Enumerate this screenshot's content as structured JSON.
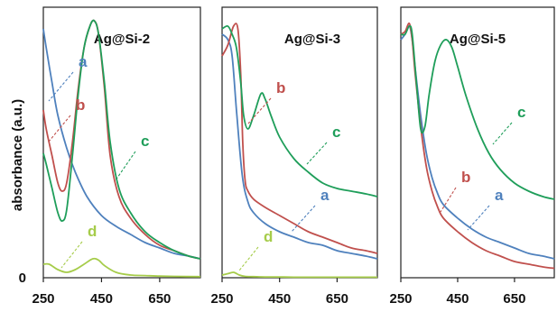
{
  "chart_data": {
    "type": "line",
    "ylabel": "absorbance (a.u.)",
    "y_tick_labels": [
      "0"
    ],
    "grid": false,
    "legend": "none",
    "curve_colors": {
      "a": "#4f81bd",
      "b": "#c0504d",
      "c": "#1f9e5a",
      "d": "#a6cc4a"
    },
    "panels": [
      {
        "title": "Ag@Si-2",
        "xlim": [
          250,
          790
        ],
        "x_ticks": [
          250,
          450,
          650
        ],
        "ylim": [
          0,
          1.0
        ],
        "labels": {
          "a": "a",
          "b": "b",
          "c": "c",
          "d": "d"
        },
        "series": [
          {
            "name": "a",
            "x": [
              250,
              260,
              280,
              300,
              330,
              360,
              400,
              450,
              500,
              550,
              600,
              650,
              700,
              750,
              790
            ],
            "y": [
              0.92,
              0.85,
              0.72,
              0.6,
              0.48,
              0.39,
              0.3,
              0.23,
              0.19,
              0.16,
              0.13,
              0.11,
              0.09,
              0.08,
              0.07
            ]
          },
          {
            "name": "b",
            "x": [
              250,
              260,
              280,
              300,
              315,
              330,
              350,
              370,
              390,
              410,
              425,
              440,
              460,
              480,
              510,
              550,
              600,
              650,
              700,
              750,
              790
            ],
            "y": [
              0.62,
              0.55,
              0.45,
              0.35,
              0.32,
              0.35,
              0.5,
              0.7,
              0.85,
              0.93,
              0.95,
              0.9,
              0.7,
              0.45,
              0.3,
              0.22,
              0.16,
              0.12,
              0.1,
              0.08,
              0.07
            ]
          },
          {
            "name": "c",
            "x": [
              250,
              260,
              280,
              300,
              315,
              330,
              350,
              370,
              390,
              410,
              425,
              440,
              460,
              480,
              510,
              550,
              600,
              650,
              700,
              750,
              790
            ],
            "y": [
              0.46,
              0.42,
              0.33,
              0.24,
              0.21,
              0.25,
              0.45,
              0.68,
              0.85,
              0.93,
              0.95,
              0.9,
              0.72,
              0.5,
              0.33,
              0.24,
              0.17,
              0.13,
              0.1,
              0.08,
              0.07
            ]
          },
          {
            "name": "d",
            "x": [
              250,
              270,
              300,
              330,
              360,
              390,
              420,
              440,
              460,
              500,
              550,
              600,
              650,
              700,
              790
            ],
            "y": [
              0.05,
              0.05,
              0.03,
              0.02,
              0.03,
              0.05,
              0.07,
              0.065,
              0.045,
              0.02,
              0.01,
              0.008,
              0.006,
              0.005,
              0.004
            ]
          }
        ]
      },
      {
        "title": "Ag@Si-3",
        "xlim": [
          250,
          790
        ],
        "x_ticks": [
          250,
          450,
          650
        ],
        "ylim": [
          0,
          1.0
        ],
        "labels": {
          "a": "a",
          "b": "b",
          "c": "c",
          "d": "d"
        },
        "series": [
          {
            "name": "a",
            "x": [
              250,
              270,
              285,
              300,
              320,
              340,
              360,
              400,
              450,
              500,
              550,
              600,
              650,
              700,
              750,
              790
            ],
            "y": [
              0.9,
              0.88,
              0.82,
              0.62,
              0.38,
              0.28,
              0.24,
              0.2,
              0.17,
              0.15,
              0.13,
              0.12,
              0.1,
              0.09,
              0.08,
              0.07
            ]
          },
          {
            "name": "b",
            "x": [
              250,
              270,
              290,
              305,
              315,
              322,
              330,
              340,
              360,
              400,
              450,
              500,
              550,
              600,
              650,
              700,
              750,
              790
            ],
            "y": [
              0.82,
              0.86,
              0.93,
              0.92,
              0.75,
              0.5,
              0.36,
              0.32,
              0.29,
              0.26,
              0.23,
              0.2,
              0.17,
              0.15,
              0.13,
              0.11,
              0.1,
              0.09
            ]
          },
          {
            "name": "c",
            "x": [
              250,
              270,
              285,
              300,
              315,
              325,
              340,
              360,
              385,
              400,
              420,
              450,
              500,
              550,
              600,
              650,
              700,
              750,
              790
            ],
            "y": [
              0.92,
              0.93,
              0.9,
              0.85,
              0.72,
              0.6,
              0.55,
              0.6,
              0.68,
              0.66,
              0.6,
              0.52,
              0.44,
              0.39,
              0.35,
              0.33,
              0.32,
              0.31,
              0.3
            ]
          },
          {
            "name": "d",
            "x": [
              250,
              270,
              290,
              310,
              330,
              360,
              400,
              450,
              500,
              600,
              700,
              790
            ],
            "y": [
              0.01,
              0.015,
              0.02,
              0.01,
              0.005,
              0.004,
              0.003,
              0.003,
              0.002,
              0.002,
              0.002,
              0.002
            ]
          }
        ]
      },
      {
        "title": "Ag@Si-5",
        "xlim": [
          250,
          790
        ],
        "x_ticks": [
          250,
          450,
          650
        ],
        "ylim": [
          0,
          1.0
        ],
        "labels": {
          "a": "a",
          "b": "b",
          "c": "c"
        },
        "series": [
          {
            "name": "a",
            "x": [
              250,
              265,
              280,
              290,
              300,
              320,
              340,
              360,
              380,
              400,
              450,
              500,
              550,
              600,
              650,
              700,
              750,
              790
            ],
            "y": [
              0.88,
              0.9,
              0.93,
              0.88,
              0.78,
              0.6,
              0.46,
              0.37,
              0.31,
              0.27,
              0.22,
              0.18,
              0.15,
              0.13,
              0.11,
              0.09,
              0.08,
              0.07
            ]
          },
          {
            "name": "b",
            "x": [
              250,
              265,
              280,
              290,
              300,
              320,
              340,
              360,
              380,
              400,
              450,
              500,
              550,
              600,
              650,
              700,
              750,
              790
            ],
            "y": [
              0.9,
              0.91,
              0.94,
              0.88,
              0.76,
              0.56,
              0.41,
              0.32,
              0.26,
              0.22,
              0.17,
              0.13,
              0.1,
              0.08,
              0.06,
              0.05,
              0.04,
              0.035
            ]
          },
          {
            "name": "c",
            "x": [
              250,
              265,
              280,
              290,
              305,
              320,
              335,
              350,
              370,
              390,
              410,
              430,
              450,
              480,
              520,
              560,
              600,
              650,
              700,
              750,
              790
            ],
            "y": [
              0.9,
              0.9,
              0.93,
              0.9,
              0.72,
              0.55,
              0.56,
              0.68,
              0.8,
              0.86,
              0.88,
              0.85,
              0.78,
              0.67,
              0.55,
              0.46,
              0.4,
              0.35,
              0.32,
              0.3,
              0.29
            ]
          }
        ]
      }
    ]
  }
}
